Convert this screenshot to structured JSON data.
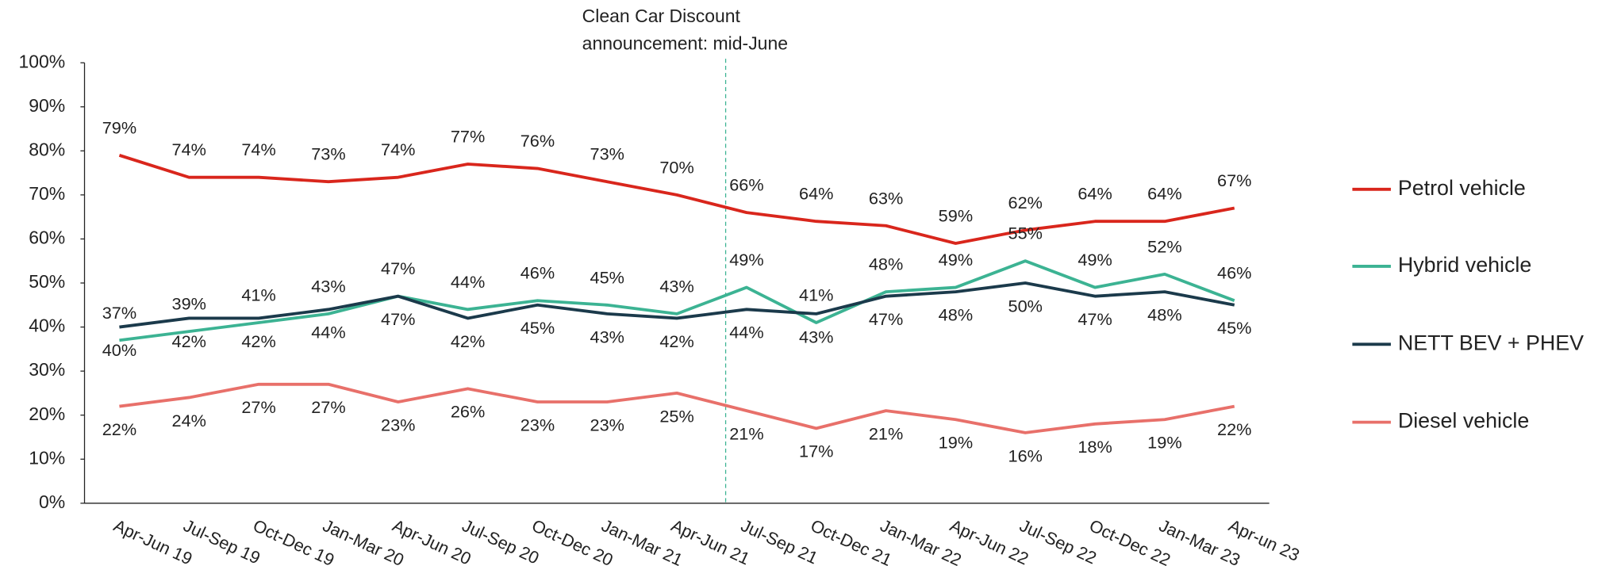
{
  "chart_data": {
    "type": "line",
    "annotation": [
      "Clean Car Discount",
      "announcement: mid-June"
    ],
    "categories": [
      "Apr-Jun 19",
      "Jul-Sep 19",
      "Oct-Dec 19",
      "Jan-Mar 20",
      "Apr-Jun 20",
      "Jul-Sep 20",
      "Oct-Dec 20",
      "Jan-Mar 21",
      "Apr-Jun 21",
      "Jul-Sep 21",
      "Oct-Dec 21",
      "Jan-Mar 22",
      "Apr-Jun 22",
      "Jul-Sep 22",
      "Oct-Dec 22",
      "Jan-Mar 23",
      "Apr-un 23"
    ],
    "series": [
      {
        "name": "Petrol vehicle",
        "color": "#d9261c",
        "values": [
          79,
          74,
          74,
          73,
          74,
          77,
          76,
          73,
          70,
          66,
          64,
          63,
          59,
          62,
          64,
          64,
          67
        ],
        "value_labels": [
          "79%",
          "74%",
          "74%",
          "73%",
          "74%",
          "77%",
          "76%",
          "73%",
          "70%",
          "66%",
          "64%",
          "63%",
          "59%",
          "62%",
          "64%",
          "64%",
          "67%"
        ]
      },
      {
        "name": "Hybrid vehicle",
        "color": "#3cb393",
        "values": [
          37,
          39,
          41,
          43,
          47,
          44,
          46,
          45,
          43,
          49,
          41,
          48,
          49,
          55,
          49,
          52,
          46
        ],
        "value_labels": [
          "37%",
          "39%",
          "41%",
          "43%",
          "47%",
          "44%",
          "46%",
          "45%",
          "43%",
          "49%",
          "41%",
          "48%",
          "49%",
          "55%",
          "49%",
          "52%",
          "46%"
        ]
      },
      {
        "name": "NETT BEV + PHEV",
        "color": "#1b3a4b",
        "values": [
          40,
          42,
          42,
          44,
          47,
          42,
          45,
          43,
          42,
          44,
          43,
          47,
          48,
          50,
          47,
          48,
          45
        ],
        "value_labels": [
          "40%",
          "42%",
          "42%",
          "44%",
          "47%",
          "42%",
          "45%",
          "43%",
          "42%",
          "44%",
          "43%",
          "47%",
          "48%",
          "50%",
          "47%",
          "48%",
          "45%"
        ]
      },
      {
        "name": "Diesel vehicle",
        "color": "#e8706a",
        "values": [
          22,
          24,
          27,
          27,
          23,
          26,
          23,
          23,
          25,
          21,
          17,
          21,
          19,
          16,
          18,
          19,
          22
        ],
        "value_labels": [
          "22%",
          "24%",
          "27%",
          "27%",
          "23%",
          "26%",
          "23%",
          "23%",
          "25%",
          "21%",
          "17%",
          "21%",
          "19%",
          "16%",
          "18%",
          "19%",
          "22%"
        ]
      }
    ],
    "ylim": [
      0,
      100
    ],
    "yticks": [
      {
        "value": 0,
        "label": "0%"
      },
      {
        "value": 10,
        "label": "10%"
      },
      {
        "value": 20,
        "label": "20%"
      },
      {
        "value": 30,
        "label": "30%"
      },
      {
        "value": 40,
        "label": "40%"
      },
      {
        "value": 50,
        "label": "50%"
      },
      {
        "value": 60,
        "label": "60%"
      },
      {
        "value": 70,
        "label": "70%"
      },
      {
        "value": 80,
        "label": "80%"
      },
      {
        "value": 90,
        "label": "90%"
      },
      {
        "value": 100,
        "label": "100%"
      }
    ],
    "legend": "right"
  }
}
